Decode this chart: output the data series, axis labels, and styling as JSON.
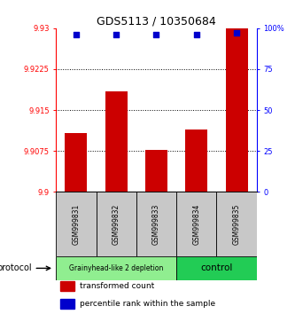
{
  "title": "GDS5113 / 10350684",
  "samples": [
    "GSM999831",
    "GSM999832",
    "GSM999833",
    "GSM999834",
    "GSM999835"
  ],
  "red_values": [
    9.9108,
    9.9185,
    9.9077,
    9.9115,
    9.93
  ],
  "blue_values": [
    96,
    96,
    96,
    96,
    97
  ],
  "ylim_left": [
    9.9,
    9.93
  ],
  "ylim_right": [
    0,
    100
  ],
  "yticks_left": [
    9.9,
    9.9075,
    9.915,
    9.9225,
    9.93
  ],
  "ytick_labels_left": [
    "9.9",
    "9.9075",
    "9.915",
    "9.9225",
    "9.93"
  ],
  "yticks_right": [
    0,
    25,
    50,
    75,
    100
  ],
  "ytick_labels_right": [
    "0",
    "25",
    "50",
    "75",
    "100%"
  ],
  "groups": [
    {
      "label": "Grainyhead-like 2 depletion",
      "color": "#90EE90",
      "indices": [
        0,
        1,
        2
      ]
    },
    {
      "label": "control",
      "color": "#22CC55",
      "indices": [
        3,
        4
      ]
    }
  ],
  "bar_color": "#CC0000",
  "dot_color": "#0000CC",
  "protocol_label": "protocol",
  "legend_items": [
    {
      "color": "#CC0000",
      "label": "transformed count"
    },
    {
      "color": "#0000CC",
      "label": "percentile rank within the sample"
    }
  ],
  "bar_width": 0.55,
  "baseline": 9.9,
  "gray_box_color": "#C8C8C8"
}
